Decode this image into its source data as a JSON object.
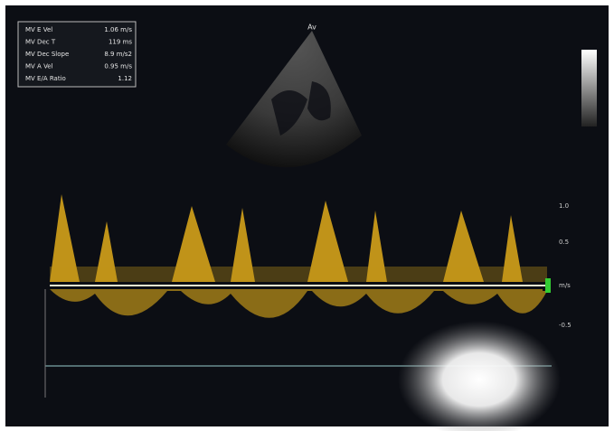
{
  "measurements": [
    {
      "label": "MV E Vel",
      "value": "1.06 m/s"
    },
    {
      "label": "MV Dec T",
      "value": "119 ms"
    },
    {
      "label": "MV Dec Slope",
      "value": "8.9 m/s2"
    },
    {
      "label": "MV A Vel",
      "value": "0.95 m/s"
    },
    {
      "label": "MV E/A Ratio",
      "value": "1.12"
    }
  ],
  "view_label": "Av",
  "scale_labels": [
    "1.0",
    "0.5",
    "m/s",
    "-0.5"
  ]
}
